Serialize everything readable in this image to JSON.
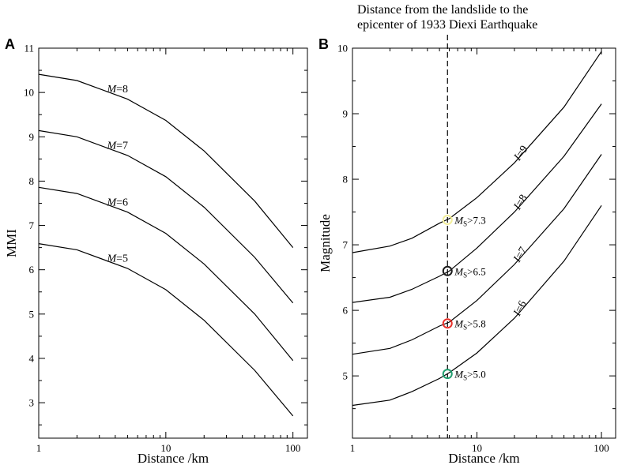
{
  "panel_letters": {
    "a": "A",
    "b": "B"
  },
  "chart_data": [
    {
      "type": "line",
      "panel": "A",
      "title": "",
      "xlabel": "Distance /km",
      "ylabel": "MMI",
      "xscale": "log",
      "xlim": [
        1,
        130
      ],
      "ylim": [
        2.2,
        11
      ],
      "x_ticks": [
        1,
        10,
        100
      ],
      "x_tick_labels": [
        "1",
        "10",
        "100"
      ],
      "y_ticks": [
        3,
        4,
        5,
        6,
        7,
        8,
        9,
        10,
        11
      ],
      "y_tick_labels": [
        "3",
        "4",
        "5",
        "6",
        "7",
        "8",
        "9",
        "10",
        "11"
      ],
      "x": [
        1,
        2,
        5,
        10,
        20,
        50,
        100
      ],
      "series": [
        {
          "name": "M=8",
          "label_prefix": "M",
          "label_suffix": "=8",
          "values": [
            10.41,
            10.27,
            9.85,
            9.37,
            8.68,
            7.55,
            6.5
          ]
        },
        {
          "name": "M=7",
          "label_prefix": "M",
          "label_suffix": "=7",
          "values": [
            9.14,
            9.0,
            8.58,
            8.1,
            7.41,
            6.28,
            5.25
          ]
        },
        {
          "name": "M=6",
          "label_prefix": "M",
          "label_suffix": "=6",
          "values": [
            7.86,
            7.72,
            7.3,
            6.82,
            6.13,
            5.0,
            3.95
          ]
        },
        {
          "name": "M=5",
          "label_prefix": "M",
          "label_suffix": "=5",
          "values": [
            6.59,
            6.45,
            6.03,
            5.55,
            4.86,
            3.73,
            2.7
          ]
        }
      ]
    },
    {
      "type": "line",
      "panel": "B",
      "title_lines": [
        "Distance from the landslide to the",
        "epicenter of 1933 Diexi Earthquake"
      ],
      "xlabel": "Distance /km",
      "ylabel": "Magnitude",
      "xscale": "log",
      "xlim": [
        1,
        130
      ],
      "ylim": [
        4.05,
        10
      ],
      "x_ticks": [
        1,
        10,
        100
      ],
      "x_tick_labels": [
        "1",
        "10",
        "100"
      ],
      "y_ticks": [
        5,
        6,
        7,
        8,
        9,
        10
      ],
      "y_tick_labels": [
        "5",
        "6",
        "7",
        "8",
        "9",
        "10"
      ],
      "x": [
        1,
        2,
        3,
        5,
        6,
        10,
        20,
        50,
        100
      ],
      "series": [
        {
          "name": "I=9",
          "label_prefix": "I",
          "label_suffix": "=9",
          "values": [
            6.88,
            6.98,
            7.1,
            7.33,
            7.4,
            7.72,
            8.25,
            9.1,
            9.95
          ]
        },
        {
          "name": "I=8",
          "label_prefix": "I",
          "label_suffix": "=8",
          "values": [
            6.12,
            6.2,
            6.32,
            6.52,
            6.6,
            6.95,
            7.5,
            8.35,
            9.15
          ]
        },
        {
          "name": "I=7",
          "label_prefix": "I",
          "label_suffix": "=7",
          "values": [
            5.33,
            5.42,
            5.55,
            5.76,
            5.82,
            6.15,
            6.7,
            7.55,
            8.38
          ]
        },
        {
          "name": "I=6",
          "label_prefix": "I",
          "label_suffix": "=6",
          "values": [
            4.55,
            4.63,
            4.76,
            4.96,
            5.05,
            5.35,
            5.88,
            6.75,
            7.6
          ]
        }
      ],
      "reference_line": {
        "x": 5.8,
        "style": "dashed"
      },
      "markers": [
        {
          "x": 5.8,
          "y": 7.38,
          "color": "#f2ee9a",
          "label_prefix": "M",
          "label_sub": "S",
          "label_suffix": ">7.3"
        },
        {
          "x": 5.8,
          "y": 6.6,
          "color": "#1a1a1a",
          "label_prefix": "M",
          "label_sub": "S",
          "label_suffix": ">6.5"
        },
        {
          "x": 5.8,
          "y": 5.8,
          "color": "#e8302a",
          "label_prefix": "M",
          "label_sub": "S",
          "label_suffix": ">5.8"
        },
        {
          "x": 5.8,
          "y": 5.03,
          "color": "#1f9e6e",
          "label_prefix": "M",
          "label_sub": "S",
          "label_suffix": ">5.0"
        }
      ]
    }
  ]
}
